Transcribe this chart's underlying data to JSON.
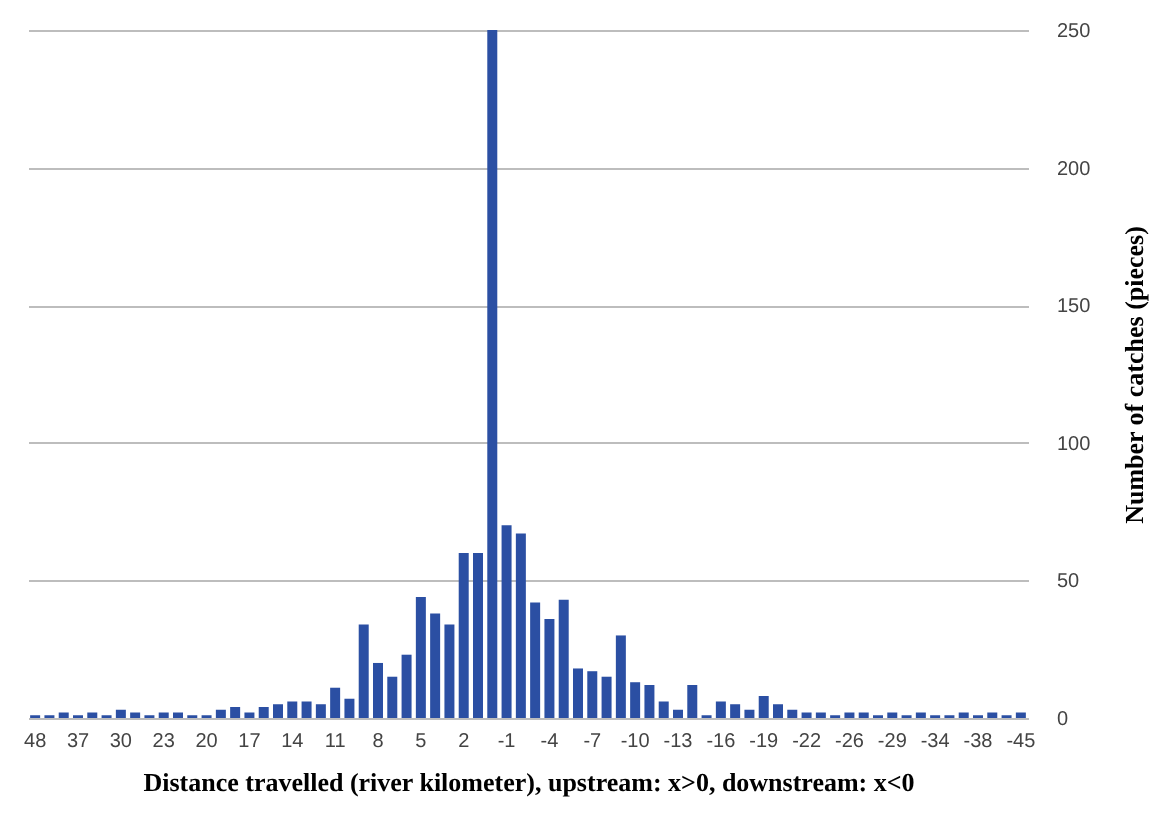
{
  "chart_data": {
    "type": "bar",
    "xlabel": "Distance travelled (river kilometer), upstream: x>0, downstream: x<0",
    "ylabel": "Number of catches (pieces)",
    "categories": [
      "48",
      null,
      null,
      "37",
      null,
      null,
      "30",
      null,
      null,
      "23",
      null,
      null,
      "20",
      null,
      null,
      "17",
      null,
      null,
      "14",
      null,
      null,
      "11",
      null,
      null,
      "8",
      null,
      null,
      "5",
      null,
      null,
      "2",
      null,
      null,
      "-1",
      null,
      null,
      "-4",
      null,
      null,
      "-7",
      null,
      null,
      "-10",
      null,
      null,
      "-13",
      null,
      null,
      "-16",
      null,
      null,
      "-19",
      null,
      null,
      "-22",
      null,
      null,
      "-26",
      null,
      null,
      "-29",
      null,
      null,
      "-34",
      null,
      null,
      "-38",
      null,
      null,
      "-45"
    ],
    "series": [
      {
        "color": "#2b4fa3",
        "values": [
          1,
          1,
          2,
          1,
          2,
          1,
          3,
          2,
          1,
          2,
          2,
          1,
          1,
          3,
          4,
          2,
          4,
          5,
          6,
          6,
          5,
          11,
          7,
          34,
          20,
          15,
          23,
          44,
          38,
          34,
          60,
          60,
          250,
          70,
          67,
          42,
          36,
          43,
          18,
          17,
          15,
          30,
          13,
          12,
          6,
          3,
          12,
          1,
          6,
          5,
          3,
          8,
          5,
          3,
          2,
          2,
          1,
          2,
          2,
          1,
          2,
          1,
          2,
          1,
          1,
          2,
          1,
          2,
          1,
          2
        ]
      }
    ],
    "ylim": [
      0,
      250
    ],
    "yticks": [
      0,
      50,
      100,
      150,
      200,
      250
    ],
    "grid": "y"
  }
}
